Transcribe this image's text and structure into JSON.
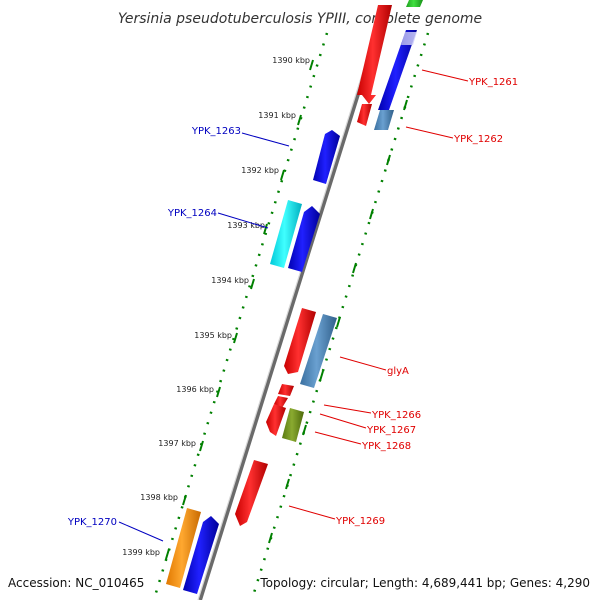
{
  "title": "Yersinia pseudotuberculosis YPIII, complete genome",
  "scale_labels": [
    "1390 kbp",
    "1391 kbp",
    "1392 kbp",
    "1393 kbp",
    "1394 kbp",
    "1395 kbp",
    "1396 kbp",
    "1397 kbp",
    "1398 kbp",
    "1399 kbp"
  ],
  "genes": [
    {
      "label": "YPK_1261",
      "strand": "forward",
      "color": "#e00000"
    },
    {
      "label": "YPK_1262",
      "strand": "forward",
      "color": "#e00000"
    },
    {
      "label": "YPK_1263",
      "strand": "reverse",
      "color": "#0000c0"
    },
    {
      "label": "YPK_1264",
      "strand": "reverse",
      "color": "#0000c0"
    },
    {
      "label": "glyA",
      "strand": "forward",
      "color": "#e00000"
    },
    {
      "label": "YPK_1266",
      "strand": "forward",
      "color": "#e00000"
    },
    {
      "label": "YPK_1267",
      "strand": "forward",
      "color": "#e00000"
    },
    {
      "label": "YPK_1268",
      "strand": "forward",
      "color": "#e00000"
    },
    {
      "label": "YPK_1269",
      "strand": "forward",
      "color": "#e00000"
    },
    {
      "label": "YPK_1270",
      "strand": "reverse",
      "color": "#0000c0"
    }
  ],
  "footer": {
    "accession": "Accession: NC_010465",
    "stats": "Topology: circular; Length: 4,689,441 bp; Genes: 4,290"
  }
}
